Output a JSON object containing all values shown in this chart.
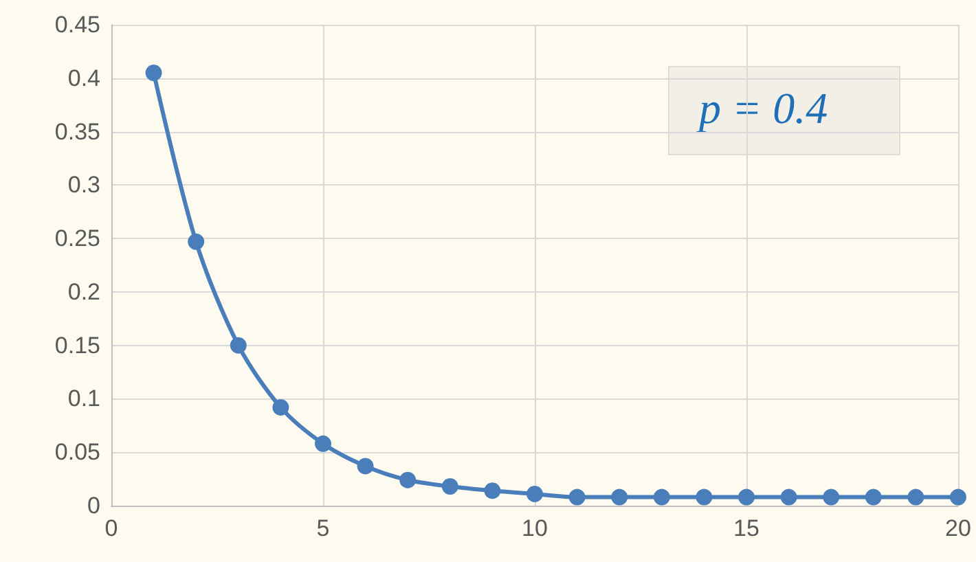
{
  "chart_data": {
    "type": "line",
    "x": [
      1,
      2,
      3,
      4,
      5,
      6,
      7,
      8,
      9,
      10,
      11,
      12,
      13,
      14,
      15,
      16,
      17,
      18,
      19,
      20
    ],
    "series": [
      {
        "color": "#4a7ebb",
        "values": [
          0.405,
          0.247,
          0.15,
          0.092,
          0.058,
          0.037,
          0.024,
          0.018,
          0.014,
          0.011,
          0.008,
          0.008,
          0.008,
          0.008,
          0.008,
          0.008,
          0.008,
          0.008,
          0.008,
          0.008
        ]
      }
    ],
    "xlim": [
      0,
      20
    ],
    "xticks": [
      0,
      5,
      10,
      15,
      20
    ],
    "ylim": [
      0,
      0.45
    ],
    "yticks": [
      0,
      0.05,
      0.1,
      0.15,
      0.2,
      0.25,
      0.3,
      0.35,
      0.4,
      0.45
    ],
    "grid": true,
    "marker": "circle",
    "line_style": "solid",
    "annotations": [
      "p = 0.4"
    ]
  }
}
